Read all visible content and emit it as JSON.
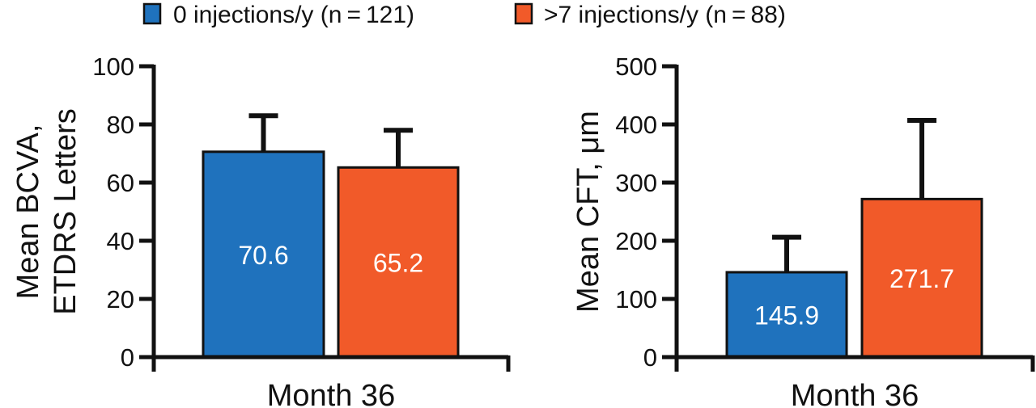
{
  "legend": [
    {
      "label": "0 injections/y (n = 121)",
      "color": "#1f72bd"
    },
    {
      "label": ">7 injections/y (n = 88)",
      "color": "#f15a29"
    }
  ],
  "chart_data": [
    {
      "type": "bar",
      "title": "",
      "xlabel": "Month 36",
      "ylabel_lines": [
        "Mean BCVA,",
        "ETDRS Letters"
      ],
      "ylim": [
        0,
        100
      ],
      "yticks": [
        0,
        20,
        40,
        60,
        80,
        100
      ],
      "categories": [
        "Month 36"
      ],
      "series": [
        {
          "name": "0 injections/y (n = 121)",
          "color": "#1f72bd",
          "values": [
            70.6
          ],
          "error_upper": [
            83
          ],
          "label": "70.6"
        },
        {
          "name": ">7 injections/y (n = 88)",
          "color": "#f15a29",
          "values": [
            65.2
          ],
          "error_upper": [
            78
          ],
          "label": "65.2"
        }
      ]
    },
    {
      "type": "bar",
      "title": "",
      "xlabel": "Month 36",
      "ylabel_lines": [
        "Mean CFT, μm"
      ],
      "ylim": [
        0,
        500
      ],
      "yticks": [
        0,
        100,
        200,
        300,
        400,
        500
      ],
      "categories": [
        "Month 36"
      ],
      "series": [
        {
          "name": "0 injections/y (n = 121)",
          "color": "#1f72bd",
          "values": [
            145.9
          ],
          "error_upper": [
            206
          ],
          "label": "145.9"
        },
        {
          "name": ">7 injections/y (n = 88)",
          "color": "#f15a29",
          "values": [
            271.7
          ],
          "error_upper": [
            407
          ],
          "label": "271.7"
        }
      ]
    }
  ]
}
